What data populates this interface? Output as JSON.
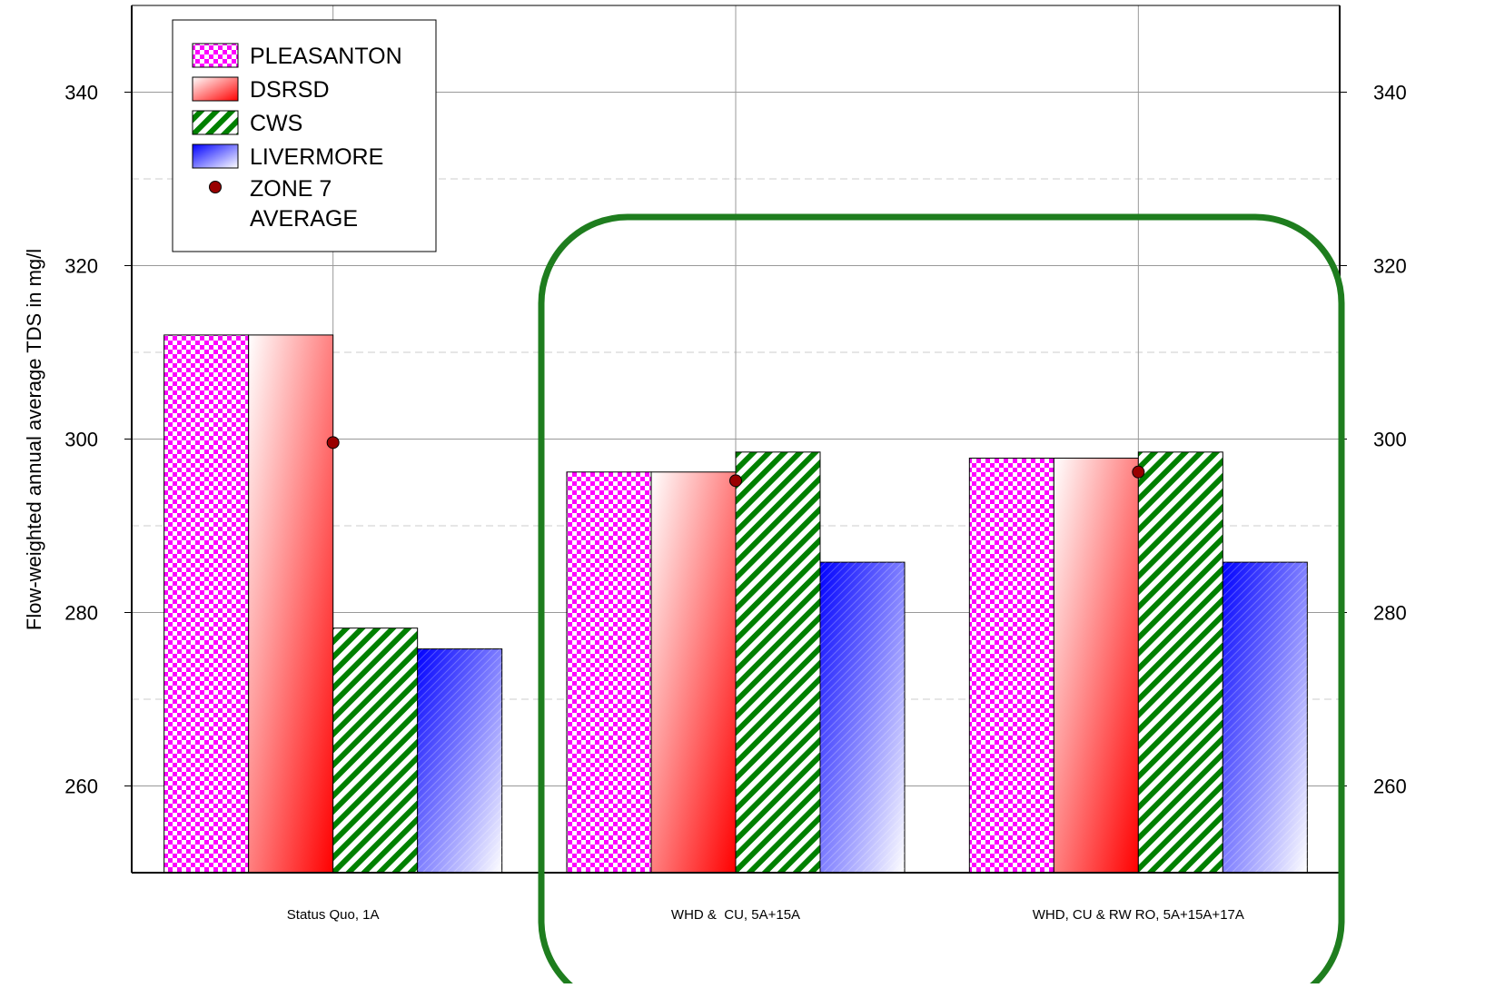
{
  "chart_data": {
    "type": "bar",
    "ylabel": "Flow-weighted annual average TDS in mg/l",
    "xlabel": "",
    "ylim": [
      250,
      350
    ],
    "y_ticks": [
      260,
      280,
      300,
      320,
      340
    ],
    "grid": "on",
    "legend_position": "top-left",
    "categories": [
      "Status Quo, 1A",
      "WHD &  CU, 5A+15A",
      "WHD, CU & RW RO, 5A+15A+17A"
    ],
    "series": [
      {
        "name": "PLEASANTON",
        "values": [
          312,
          296.2,
          297.8
        ],
        "color": "#ff00ff",
        "pattern": "checkerboard"
      },
      {
        "name": "DSRSD",
        "values": [
          312,
          296.2,
          297.8
        ],
        "color": "#ff0000",
        "pattern": "gradient"
      },
      {
        "name": "CWS",
        "values": [
          278.2,
          298.5,
          298.5
        ],
        "color": "#008000",
        "pattern": "diagonal-stripes"
      },
      {
        "name": "LIVERMORE",
        "values": [
          275.8,
          285.8,
          285.8
        ],
        "color": "#0000ff",
        "pattern": "gradient"
      }
    ],
    "markers": {
      "name": "ZONE 7\nAVERAGE",
      "name_lines": [
        "ZONE 7",
        "AVERAGE"
      ],
      "values": [
        299.6,
        295.2,
        296.2
      ],
      "color": "#8b0000"
    },
    "annotations": [
      {
        "type": "rounded-rectangle-highlight",
        "color": "#1e7d1e",
        "covers_categories": [
          "WHD &  CU, 5A+15A",
          "WHD, CU & RW RO, 5A+15A+17A"
        ]
      }
    ]
  }
}
